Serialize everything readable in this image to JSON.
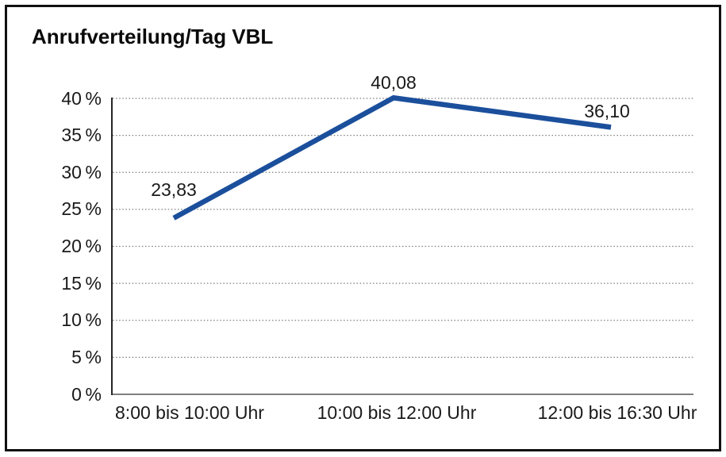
{
  "chart_data": {
    "type": "line",
    "title": "Anrufverteilung/Tag VBL",
    "categories": [
      "8:00 bis 10:00 Uhr",
      "10:00 bis 12:00 Uhr",
      "12:00 bis 16:30 Uhr"
    ],
    "values": [
      23.83,
      40.08,
      36.1
    ],
    "value_labels": [
      "23,83",
      "40,08",
      "36,10"
    ],
    "xlabel": "",
    "ylabel": "",
    "ylim": [
      0,
      40
    ],
    "ytick_step": 5,
    "ytick_labels": [
      "0 %",
      "5 %",
      "10 %",
      "15 %",
      "20 %",
      "25 %",
      "30 %",
      "35 %",
      "40 %"
    ],
    "grid": "dotted horizontal",
    "legend": "none",
    "colors": {
      "line": "#1B4F9C",
      "gridline": "#7d7d7d",
      "y_axis": "#262626",
      "baseline": "#808080",
      "frame_border": "#111111",
      "text": "#1a1a1a",
      "background": "#ffffff"
    }
  }
}
